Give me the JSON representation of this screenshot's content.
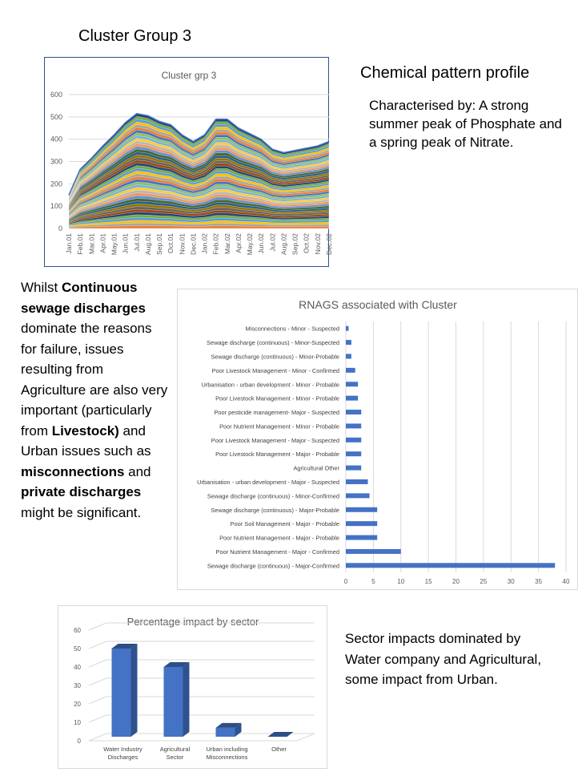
{
  "page": {
    "title": "Cluster Group 3",
    "chem_title": "Chemical pattern profile",
    "chem_desc": "Characterised by: A strong summer peak of Phosphate and a spring peak of Nitrate.",
    "left_desc": [
      {
        "t": "Whilst ",
        "b": false
      },
      {
        "t": "Continuous sewage discharges",
        "b": true
      },
      {
        "t": " dominate the reasons for failure, issues resulting from Agriculture are also very important (particularly from ",
        "b": false
      },
      {
        "t": "Livestock)",
        "b": true
      },
      {
        "t": " and Urban issues such as ",
        "b": false
      },
      {
        "t": "misconnections",
        "b": true
      },
      {
        "t": " and ",
        "b": false
      },
      {
        "t": "private discharges",
        "b": true
      },
      {
        "t": " might be significant.",
        "b": false
      }
    ],
    "sector_text": "Sector impacts dominated by Water company and Agricultural, some impact from Urban."
  },
  "chart_data": [
    {
      "type": "area",
      "title": "Cluster grp 3",
      "stacked": true,
      "categories": [
        "Jan.01",
        "Feb.01",
        "Mar.01",
        "Apr.01",
        "May.01",
        "Jun.01",
        "Jul.01",
        "Aug.01",
        "Sep.01",
        "Oct.01",
        "Nov.01",
        "Dec.01",
        "Jan.02",
        "Feb.02",
        "Mar.02",
        "Apr.02",
        "May.02",
        "Jun.02",
        "Jul.02",
        "Aug.02",
        "Sep.02",
        "Oct.02",
        "Nov.02",
        "Dec.02"
      ],
      "total": [
        150,
        265,
        315,
        370,
        420,
        475,
        515,
        505,
        480,
        465,
        420,
        390,
        420,
        490,
        490,
        450,
        425,
        400,
        355,
        340,
        350,
        360,
        370,
        390
      ],
      "ylim": [
        0,
        600
      ],
      "yticks": [
        0,
        100,
        200,
        300,
        400,
        500,
        600
      ],
      "grid": true
    },
    {
      "type": "bar",
      "orientation": "horizontal",
      "title": "RNAGS associated with Cluster",
      "categories": [
        "Misconnections - Minor - Suspected",
        "Sewage discharge (continuous) - Minor-Suspected",
        "Sewage discharge (continuous) - Minor-Probable",
        "Poor Livestock Management - Minor - Confirmed",
        "Urbanisation - urban development - Minor - Probable",
        "Poor Livestock Management - Minor - Probable",
        "Poor pesticide management- Major - Suspected",
        "Poor Nutrient Management - Minor - Probable",
        "Poor Livestock Management - Major - Suspected",
        "Poor Livestock Management - Major - Probable",
        "Agricultural Other",
        "Urbanisation - urban development - Major - Suspected",
        "Sewage discharge (continuous) - Minor-Confirmed",
        "Sewage discharge (continuous) - Major-Probable",
        "Poor Soil Management - Major - Probable",
        "Poor Nutrient Management - Major - Probable",
        "Poor Nutrient Management - Major - Confirmed",
        "Sewage discharge (continuous) - Major-Confirmed"
      ],
      "values": [
        0.5,
        1,
        1,
        1.7,
        2.2,
        2.2,
        2.8,
        2.8,
        2.8,
        2.8,
        2.8,
        4,
        4.3,
        5.7,
        5.7,
        5.7,
        10,
        38
      ],
      "xlim": [
        0,
        40
      ],
      "xticks": [
        0,
        5,
        10,
        15,
        20,
        25,
        30,
        35,
        40
      ],
      "grid": true,
      "color": "#4472c4"
    },
    {
      "type": "bar",
      "style": "3d",
      "title": "Percentage impact by sector",
      "categories": [
        [
          "Water Industry",
          "Discharges"
        ],
        [
          "Agricultural",
          "Sector"
        ],
        [
          "Urban including",
          "Misconnections"
        ],
        [
          "Other"
        ]
      ],
      "values": [
        50,
        40,
        7,
        0
      ],
      "ylim": [
        0,
        60
      ],
      "yticks": [
        0,
        10,
        20,
        30,
        40,
        50,
        60
      ],
      "color": "#4472c4"
    }
  ]
}
